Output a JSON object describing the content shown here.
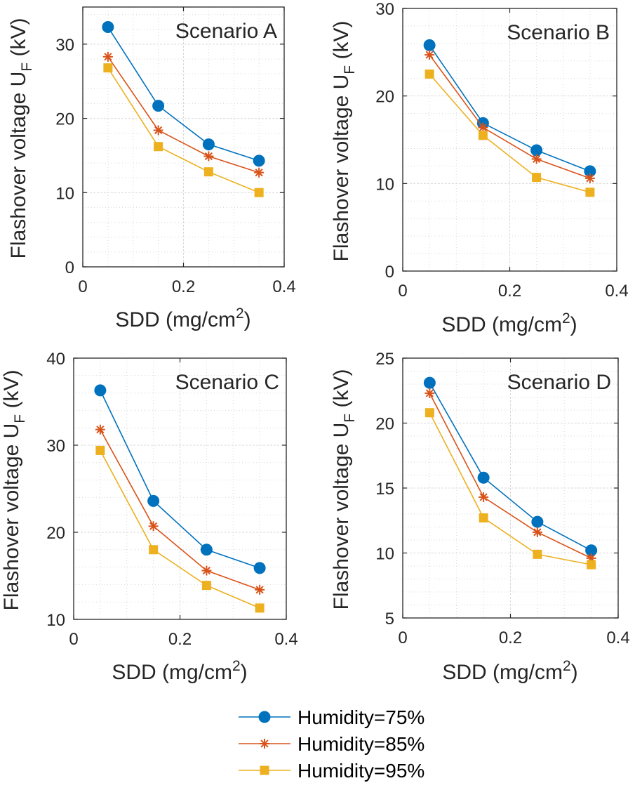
{
  "colors": {
    "h75": "#0072BD",
    "h85": "#D95319",
    "h95": "#EDB120",
    "axis": "#262626",
    "grid": "#d9d9d9"
  },
  "legend": {
    "items": [
      {
        "label": "Humidity=75%",
        "marker": "circle",
        "color": "#0072BD"
      },
      {
        "label": "Humidity=85%",
        "marker": "asterisk",
        "color": "#D95319"
      },
      {
        "label": "Humidity=95%",
        "marker": "square",
        "color": "#EDB120"
      }
    ]
  },
  "chart_data": [
    {
      "type": "line",
      "title": "Scenario A",
      "xlabel": "SDD (mg/cm",
      "xlabel_sup": "2",
      "xlabel_end": ")",
      "ylabel": "Flashover voltage U",
      "ylabel_sub": "F",
      "ylabel_end": " (kV)",
      "xlim": [
        0,
        0.4
      ],
      "ylim": [
        0,
        35
      ],
      "xticks": [
        0,
        0.2,
        0.4
      ],
      "xtick_labels": [
        "0",
        "0.2",
        "0.4"
      ],
      "yticks": [
        0,
        10,
        20,
        30
      ],
      "ytick_labels": [
        "0",
        "10",
        "20",
        "30"
      ],
      "grid": true,
      "x": [
        0.05,
        0.15,
        0.25,
        0.35
      ],
      "series": [
        {
          "name": "Humidity=75%",
          "values": [
            32.3,
            21.7,
            16.5,
            14.3
          ]
        },
        {
          "name": "Humidity=85%",
          "values": [
            28.3,
            18.4,
            14.9,
            12.7
          ]
        },
        {
          "name": "Humidity=95%",
          "values": [
            26.8,
            16.2,
            12.8,
            10.0
          ]
        }
      ]
    },
    {
      "type": "line",
      "title": "Scenario B",
      "xlabel": "SDD (mg/cm",
      "xlabel_sup": "2",
      "xlabel_end": ")",
      "ylabel": "Flashover voltage U",
      "ylabel_sub": "F",
      "ylabel_end": " (kV)",
      "xlim": [
        0,
        0.4
      ],
      "ylim": [
        0,
        30
      ],
      "xticks": [
        0,
        0.2,
        0.4
      ],
      "xtick_labels": [
        "0",
        "0.2",
        "0.4"
      ],
      "yticks": [
        0,
        10,
        20,
        30
      ],
      "ytick_labels": [
        "0",
        "10",
        "20",
        "30"
      ],
      "grid": true,
      "x": [
        0.05,
        0.15,
        0.25,
        0.35
      ],
      "series": [
        {
          "name": "Humidity=75%",
          "values": [
            25.8,
            16.9,
            13.8,
            11.4
          ]
        },
        {
          "name": "Humidity=85%",
          "values": [
            24.7,
            16.4,
            12.8,
            10.6
          ]
        },
        {
          "name": "Humidity=95%",
          "values": [
            22.5,
            15.5,
            10.7,
            9.0
          ]
        }
      ]
    },
    {
      "type": "line",
      "title": "Scenario C",
      "xlabel": "SDD (mg/cm",
      "xlabel_sup": "2",
      "xlabel_end": ")",
      "ylabel": "Flashover voltage U",
      "ylabel_sub": "F",
      "ylabel_end": " (kV)",
      "xlim": [
        0,
        0.4
      ],
      "ylim": [
        10,
        40
      ],
      "xticks": [
        0,
        0.2,
        0.4
      ],
      "xtick_labels": [
        "0",
        "0.2",
        "0.4"
      ],
      "yticks": [
        10,
        20,
        30,
        40
      ],
      "ytick_labels": [
        "10",
        "20",
        "30",
        "40"
      ],
      "grid": true,
      "x": [
        0.05,
        0.15,
        0.25,
        0.35
      ],
      "series": [
        {
          "name": "Humidity=75%",
          "values": [
            36.3,
            23.6,
            18.0,
            15.9
          ]
        },
        {
          "name": "Humidity=85%",
          "values": [
            31.8,
            20.7,
            15.6,
            13.4
          ]
        },
        {
          "name": "Humidity=95%",
          "values": [
            29.4,
            18.0,
            13.9,
            11.3
          ]
        }
      ]
    },
    {
      "type": "line",
      "title": "Scenario D",
      "xlabel": "SDD (mg/cm",
      "xlabel_sup": "2",
      "xlabel_end": ")",
      "ylabel": "Flashover voltage U",
      "ylabel_sub": "F",
      "ylabel_end": " (kV)",
      "xlim": [
        0,
        0.4
      ],
      "ylim": [
        5,
        25
      ],
      "xticks": [
        0,
        0.2,
        0.4
      ],
      "xtick_labels": [
        "0",
        "0.2",
        "0.4"
      ],
      "yticks": [
        5,
        10,
        15,
        20,
        25
      ],
      "ytick_labels": [
        "5",
        "10",
        "15",
        "20",
        "25"
      ],
      "grid": true,
      "x": [
        0.05,
        0.15,
        0.25,
        0.35
      ],
      "series": [
        {
          "name": "Humidity=75%",
          "values": [
            23.1,
            15.8,
            12.4,
            10.2
          ]
        },
        {
          "name": "Humidity=85%",
          "values": [
            22.3,
            14.3,
            11.6,
            9.6
          ]
        },
        {
          "name": "Humidity=95%",
          "values": [
            20.8,
            12.7,
            9.9,
            9.1
          ]
        }
      ]
    }
  ]
}
